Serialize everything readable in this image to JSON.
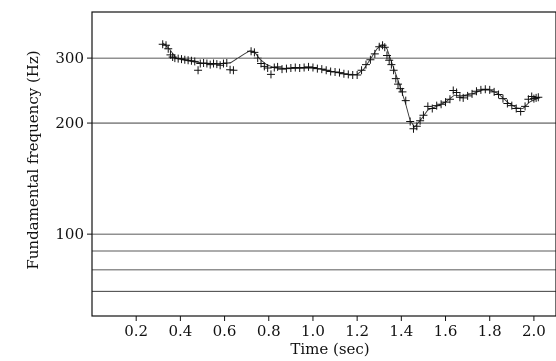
{
  "chart_data": {
    "type": "scatter",
    "title": "",
    "xlabel": "Time (sec)",
    "ylabel": "Fundamental frequency (Hz)",
    "x_range": [
      0.0,
      2.1
    ],
    "y_scale": "log",
    "y_range": [
      60,
      400
    ],
    "x_ticks": [
      {
        "value": 0.2,
        "label": "0.2"
      },
      {
        "value": 0.4,
        "label": "0.4"
      },
      {
        "value": 0.6,
        "label": "0.6"
      },
      {
        "value": 0.8,
        "label": "0.8"
      },
      {
        "value": 1.0,
        "label": "1.0"
      },
      {
        "value": 1.2,
        "label": "1.2"
      },
      {
        "value": 1.4,
        "label": "1.4"
      },
      {
        "value": 1.6,
        "label": "1.6"
      },
      {
        "value": 1.8,
        "label": "1.8"
      },
      {
        "value": 2.0,
        "label": "2.0"
      }
    ],
    "y_ticks": [
      {
        "value": 100,
        "label": "100"
      },
      {
        "value": 200,
        "label": "200"
      },
      {
        "value": 300,
        "label": "300"
      }
    ],
    "y_gridlines": [
      70,
      80,
      90,
      100,
      200,
      300
    ],
    "grid": "horizontal",
    "legend": "none",
    "series": [
      {
        "kind": "scatter",
        "marker": "plus",
        "points": [
          [
            0.32,
            327
          ],
          [
            0.335,
            325
          ],
          [
            0.345,
            318
          ],
          [
            0.355,
            306
          ],
          [
            0.365,
            302
          ],
          [
            0.375,
            300
          ],
          [
            0.39,
            299
          ],
          [
            0.405,
            298
          ],
          [
            0.42,
            297
          ],
          [
            0.435,
            296
          ],
          [
            0.45,
            295
          ],
          [
            0.465,
            294
          ],
          [
            0.48,
            278
          ],
          [
            0.49,
            290
          ],
          [
            0.505,
            291
          ],
          [
            0.52,
            290
          ],
          [
            0.535,
            288
          ],
          [
            0.55,
            290
          ],
          [
            0.565,
            289
          ],
          [
            0.58,
            287
          ],
          [
            0.595,
            290
          ],
          [
            0.61,
            291
          ],
          [
            0.625,
            279
          ],
          [
            0.64,
            278
          ],
          [
            0.72,
            313
          ],
          [
            0.735,
            311
          ],
          [
            0.75,
            300
          ],
          [
            0.765,
            290
          ],
          [
            0.78,
            285
          ],
          [
            0.795,
            282
          ],
          [
            0.81,
            271
          ],
          [
            0.825,
            283
          ],
          [
            0.84,
            284
          ],
          [
            0.86,
            280
          ],
          [
            0.88,
            281
          ],
          [
            0.9,
            282
          ],
          [
            0.92,
            283
          ],
          [
            0.94,
            282
          ],
          [
            0.96,
            283
          ],
          [
            0.98,
            284
          ],
          [
            1.0,
            283
          ],
          [
            1.02,
            281
          ],
          [
            1.04,
            280
          ],
          [
            1.06,
            278
          ],
          [
            1.08,
            276
          ],
          [
            1.1,
            275
          ],
          [
            1.12,
            274
          ],
          [
            1.14,
            272
          ],
          [
            1.16,
            271
          ],
          [
            1.18,
            270
          ],
          [
            1.2,
            270
          ],
          [
            1.22,
            278
          ],
          [
            1.24,
            288
          ],
          [
            1.26,
            297
          ],
          [
            1.28,
            308
          ],
          [
            1.3,
            322
          ],
          [
            1.315,
            325
          ],
          [
            1.325,
            321
          ],
          [
            1.335,
            305
          ],
          [
            1.345,
            296
          ],
          [
            1.355,
            288
          ],
          [
            1.365,
            278
          ],
          [
            1.375,
            264
          ],
          [
            1.385,
            255
          ],
          [
            1.395,
            248
          ],
          [
            1.405,
            243
          ],
          [
            1.42,
            230
          ],
          [
            1.44,
            202
          ],
          [
            1.455,
            193
          ],
          [
            1.47,
            196
          ],
          [
            1.485,
            203
          ],
          [
            1.5,
            210
          ],
          [
            1.52,
            222
          ],
          [
            1.54,
            219
          ],
          [
            1.56,
            223
          ],
          [
            1.58,
            225
          ],
          [
            1.6,
            228
          ],
          [
            1.62,
            232
          ],
          [
            1.635,
            245
          ],
          [
            1.65,
            242
          ],
          [
            1.665,
            235
          ],
          [
            1.68,
            234
          ],
          [
            1.7,
            237
          ],
          [
            1.72,
            240
          ],
          [
            1.74,
            244
          ],
          [
            1.76,
            246
          ],
          [
            1.78,
            247
          ],
          [
            1.8,
            246
          ],
          [
            1.82,
            243
          ],
          [
            1.84,
            239
          ],
          [
            1.86,
            233
          ],
          [
            1.88,
            226
          ],
          [
            1.9,
            223
          ],
          [
            1.92,
            219
          ],
          [
            1.94,
            215
          ],
          [
            1.96,
            222
          ],
          [
            1.975,
            232
          ],
          [
            1.99,
            236
          ],
          [
            2.0,
            233
          ],
          [
            2.01,
            234
          ],
          [
            2.02,
            235
          ]
        ]
      },
      {
        "kind": "line",
        "points": [
          [
            0.32,
            330
          ],
          [
            0.35,
            318
          ],
          [
            0.38,
            300
          ],
          [
            0.42,
            296
          ],
          [
            0.46,
            293
          ],
          [
            0.5,
            291
          ],
          [
            0.55,
            290
          ],
          [
            0.6,
            290
          ],
          [
            0.63,
            292
          ],
          [
            0.66,
            300
          ],
          [
            0.69,
            308
          ],
          [
            0.715,
            314
          ],
          [
            0.735,
            312
          ],
          [
            0.76,
            298
          ],
          [
            0.79,
            288
          ],
          [
            0.83,
            282
          ],
          [
            0.9,
            281
          ],
          [
            1.0,
            282
          ],
          [
            1.05,
            279
          ],
          [
            1.1,
            275
          ],
          [
            1.15,
            271
          ],
          [
            1.2,
            271
          ],
          [
            1.23,
            280
          ],
          [
            1.26,
            298
          ],
          [
            1.29,
            318
          ],
          [
            1.315,
            327
          ],
          [
            1.335,
            318
          ],
          [
            1.36,
            288
          ],
          [
            1.39,
            256
          ],
          [
            1.42,
            225
          ],
          [
            1.44,
            203
          ],
          [
            1.46,
            195
          ],
          [
            1.49,
            205
          ],
          [
            1.52,
            217
          ],
          [
            1.56,
            222
          ],
          [
            1.6,
            228
          ],
          [
            1.64,
            238
          ],
          [
            1.67,
            237
          ],
          [
            1.72,
            240
          ],
          [
            1.77,
            246
          ],
          [
            1.8,
            246
          ],
          [
            1.84,
            240
          ],
          [
            1.88,
            228
          ],
          [
            1.92,
            220
          ],
          [
            1.95,
            219
          ],
          [
            1.98,
            228
          ],
          [
            2.02,
            234
          ]
        ]
      }
    ]
  }
}
